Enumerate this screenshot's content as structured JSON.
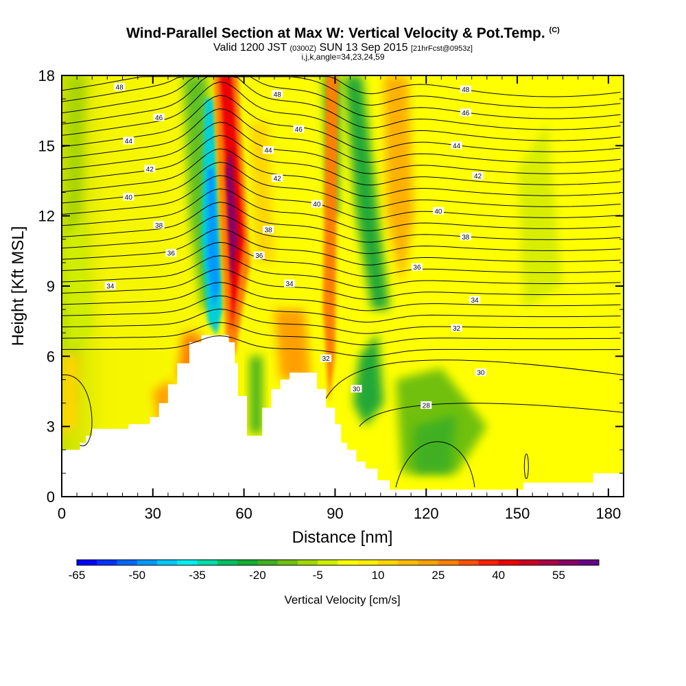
{
  "header": {
    "title": "Wind-Parallel Section at Max W: Vertical Velocity & Pot.Temp.",
    "copyright_mark": "(C)",
    "valid_main_1": "Valid 1200 JST",
    "valid_utc": "(0300Z)",
    "valid_main_2": "SUN 13 Sep 2015",
    "forecast": "[21hrFcst@0953z]",
    "grid_info": "i,j,k,angle=34,23,24,59"
  },
  "chart_data": {
    "type": "heatmap",
    "xlabel": "Distance [nm]",
    "ylabel": "Height [Kft MSL]",
    "xlim": [
      0,
      185
    ],
    "ylim": [
      0,
      18
    ],
    "x_ticks": [
      "0",
      "30",
      "60",
      "90",
      "120",
      "150",
      "180"
    ],
    "y_ticks": [
      "0",
      "3",
      "6",
      "9",
      "12",
      "15",
      "18"
    ],
    "colorbar": {
      "title": "Vertical Velocity [cm/s]",
      "labels": [
        "-65",
        "-50",
        "-35",
        "-20",
        "-5",
        "10",
        "25",
        "40",
        "55"
      ],
      "min": -65,
      "max": 65,
      "step": 5,
      "colors": [
        "#0000ff",
        "#0033ff",
        "#0066ff",
        "#0099ff",
        "#00c8ff",
        "#00eeee",
        "#00ddaa",
        "#00c060",
        "#10b030",
        "#40b020",
        "#70c010",
        "#a0d800",
        "#d0ee00",
        "#ffff00",
        "#ffee00",
        "#ffd500",
        "#ffbb00",
        "#ffa000",
        "#ff8000",
        "#ff5000",
        "#ff2000",
        "#ee0000",
        "#cc0022",
        "#aa0044",
        "#880066",
        "#660088"
      ]
    },
    "contour_labels": [
      {
        "v": "48",
        "x": 19,
        "y": 17.5
      },
      {
        "v": "48",
        "x": 71,
        "y": 17.2
      },
      {
        "v": "48",
        "x": 133,
        "y": 17.4
      },
      {
        "v": "46",
        "x": 32,
        "y": 16.2
      },
      {
        "v": "46",
        "x": 78,
        "y": 15.7
      },
      {
        "v": "46",
        "x": 133,
        "y": 16.4
      },
      {
        "v": "44",
        "x": 22,
        "y": 15.2
      },
      {
        "v": "44",
        "x": 68,
        "y": 14.8
      },
      {
        "v": "44",
        "x": 130,
        "y": 15.0
      },
      {
        "v": "42",
        "x": 29,
        "y": 14.0
      },
      {
        "v": "42",
        "x": 71,
        "y": 13.6
      },
      {
        "v": "42",
        "x": 137,
        "y": 13.7
      },
      {
        "v": "40",
        "x": 22,
        "y": 12.8
      },
      {
        "v": "40",
        "x": 84,
        "y": 12.5
      },
      {
        "v": "40",
        "x": 124,
        "y": 12.2
      },
      {
        "v": "38",
        "x": 32,
        "y": 11.6
      },
      {
        "v": "38",
        "x": 68,
        "y": 11.4
      },
      {
        "v": "38",
        "x": 133,
        "y": 11.1
      },
      {
        "v": "36",
        "x": 36,
        "y": 10.4
      },
      {
        "v": "36",
        "x": 65,
        "y": 10.3
      },
      {
        "v": "36",
        "x": 117,
        "y": 9.8
      },
      {
        "v": "34",
        "x": 16,
        "y": 9.0
      },
      {
        "v": "34",
        "x": 75,
        "y": 9.1
      },
      {
        "v": "34",
        "x": 136,
        "y": 8.4
      },
      {
        "v": "32",
        "x": 87,
        "y": 5.9
      },
      {
        "v": "32",
        "x": 130,
        "y": 7.2
      },
      {
        "v": "30",
        "x": 97,
        "y": 4.6
      },
      {
        "v": "30",
        "x": 138,
        "y": 5.3
      },
      {
        "v": "28",
        "x": 120,
        "y": 3.9
      }
    ],
    "terrain": [
      [
        0,
        2
      ],
      [
        6,
        2
      ],
      [
        6,
        2.3
      ],
      [
        8,
        2.3
      ],
      [
        8,
        2.6
      ],
      [
        10,
        2.6
      ],
      [
        10,
        2.9
      ],
      [
        22,
        2.9
      ],
      [
        22,
        3.1
      ],
      [
        29,
        3.1
      ],
      [
        29,
        3.4
      ],
      [
        32,
        3.4
      ],
      [
        32,
        4.0
      ],
      [
        35,
        4.0
      ],
      [
        35,
        4.8
      ],
      [
        38,
        4.8
      ],
      [
        38,
        5.7
      ],
      [
        42,
        5.7
      ],
      [
        42,
        6.6
      ],
      [
        46,
        6.6
      ],
      [
        46,
        6.9
      ],
      [
        49,
        6.9
      ],
      [
        49,
        6.9
      ],
      [
        55,
        6.9
      ],
      [
        55,
        6.6
      ],
      [
        57,
        6.6
      ],
      [
        57,
        5.7
      ],
      [
        58,
        5.7
      ],
      [
        58,
        4.3
      ],
      [
        61,
        4.3
      ],
      [
        61,
        2.6
      ],
      [
        66,
        2.6
      ],
      [
        66,
        3.8
      ],
      [
        69,
        3.8
      ],
      [
        69,
        4.6
      ],
      [
        72,
        4.6
      ],
      [
        72,
        5.0
      ],
      [
        75,
        5.0
      ],
      [
        75,
        5.3
      ],
      [
        84,
        5.3
      ],
      [
        84,
        4.6
      ],
      [
        87,
        4.6
      ],
      [
        87,
        3.8
      ],
      [
        90,
        3.8
      ],
      [
        90,
        3.1
      ],
      [
        92,
        3.1
      ],
      [
        92,
        2.3
      ],
      [
        94,
        2.3
      ],
      [
        94,
        2.0
      ],
      [
        97,
        2.0
      ],
      [
        97,
        1.5
      ],
      [
        100,
        1.5
      ],
      [
        100,
        1.2
      ],
      [
        104,
        1.2
      ],
      [
        104,
        0.7
      ],
      [
        108,
        0.7
      ],
      [
        108,
        0.3
      ],
      [
        152,
        0.3
      ],
      [
        152,
        0.6
      ],
      [
        175,
        0.6
      ],
      [
        175,
        1.0
      ],
      [
        185,
        1.0
      ]
    ]
  }
}
